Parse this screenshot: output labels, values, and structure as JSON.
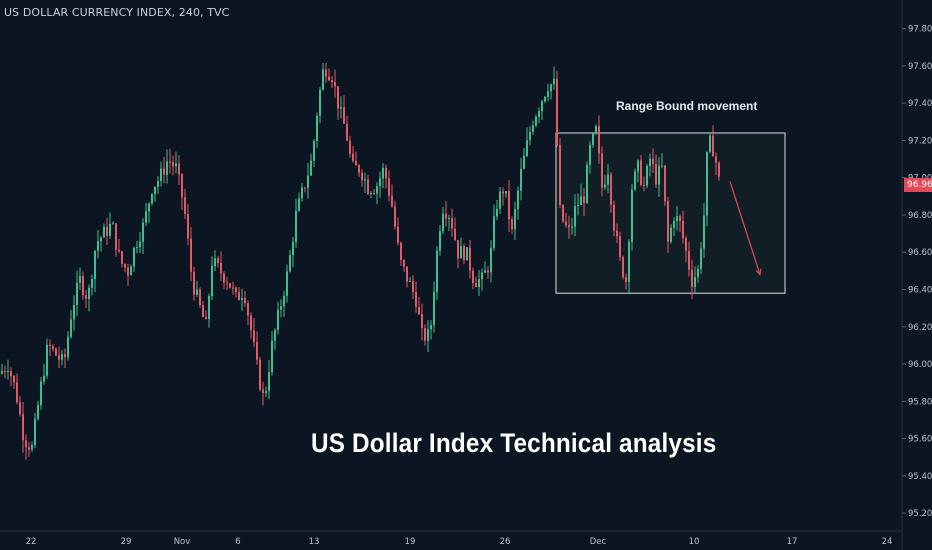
{
  "header": {
    "symbol_title": "US DOLLAR CURRENCY INDEX, 240, TVC"
  },
  "overlay": {
    "title": "US Dollar Index Technical analysis",
    "range_annotation": "Range Bound movement"
  },
  "current_price": {
    "label": "96.96",
    "value": 96.96,
    "color": "#e24a5b"
  },
  "colors": {
    "background": "#0c1622",
    "up": "#3fbf8f",
    "down": "#e25b68",
    "range_box_fill": "#15262a",
    "range_box_border": "#d9dde3",
    "arrow": "#e24a5b"
  },
  "chart_data": {
    "type": "candlestick",
    "title": "US DOLLAR CURRENCY INDEX, 240, TVC",
    "timeframe": "240",
    "x_tick_labels": [
      "22",
      "29",
      "Nov",
      "6",
      "13",
      "19",
      "26",
      "Dec",
      "10",
      "17",
      "24"
    ],
    "y_tick_values": [
      95.2,
      95.4,
      95.6,
      95.8,
      96.0,
      96.2,
      96.4,
      96.6,
      96.8,
      97.0,
      97.2,
      97.4,
      97.6,
      97.8
    ],
    "y_tick_labels": [
      "95.20",
      "95.40",
      "95.60",
      "95.80",
      "96.00",
      "96.20",
      "96.40",
      "96.60",
      "96.80",
      "97.00",
      "97.20",
      "97.40",
      "97.60",
      "97.80"
    ],
    "ylim": [
      95.12,
      97.9
    ],
    "grid": false,
    "path": [
      [
        0,
        95.95
      ],
      [
        8,
        96.0
      ],
      [
        16,
        95.85
      ],
      [
        24,
        95.6
      ],
      [
        32,
        95.55
      ],
      [
        40,
        95.85
      ],
      [
        48,
        96.1
      ],
      [
        56,
        96.05
      ],
      [
        64,
        96.0
      ],
      [
        72,
        96.3
      ],
      [
        80,
        96.45
      ],
      [
        88,
        96.35
      ],
      [
        96,
        96.65
      ],
      [
        104,
        96.7
      ],
      [
        112,
        96.75
      ],
      [
        120,
        96.55
      ],
      [
        128,
        96.5
      ],
      [
        136,
        96.65
      ],
      [
        144,
        96.75
      ],
      [
        152,
        96.95
      ],
      [
        160,
        97.0
      ],
      [
        168,
        97.1
      ],
      [
        176,
        97.05
      ],
      [
        184,
        96.85
      ],
      [
        192,
        96.45
      ],
      [
        200,
        96.3
      ],
      [
        206,
        96.2
      ],
      [
        212,
        96.55
      ],
      [
        220,
        96.5
      ],
      [
        228,
        96.45
      ],
      [
        236,
        96.35
      ],
      [
        244,
        96.4
      ],
      [
        252,
        96.15
      ],
      [
        258,
        95.95
      ],
      [
        264,
        95.8
      ],
      [
        272,
        96.1
      ],
      [
        280,
        96.3
      ],
      [
        288,
        96.5
      ],
      [
        296,
        96.8
      ],
      [
        304,
        96.95
      ],
      [
        312,
        97.1
      ],
      [
        318,
        97.4
      ],
      [
        324,
        97.6
      ],
      [
        332,
        97.55
      ],
      [
        340,
        97.35
      ],
      [
        346,
        97.25
      ],
      [
        352,
        97.05
      ],
      [
        360,
        97.05
      ],
      [
        368,
        96.95
      ],
      [
        376,
        96.95
      ],
      [
        384,
        97.05
      ],
      [
        392,
        96.85
      ],
      [
        400,
        96.55
      ],
      [
        408,
        96.45
      ],
      [
        416,
        96.35
      ],
      [
        422,
        96.15
      ],
      [
        430,
        96.15
      ],
      [
        436,
        96.55
      ],
      [
        442,
        96.85
      ],
      [
        450,
        96.8
      ],
      [
        458,
        96.6
      ],
      [
        466,
        96.6
      ],
      [
        474,
        96.45
      ],
      [
        482,
        96.45
      ],
      [
        490,
        96.55
      ],
      [
        496,
        96.85
      ],
      [
        504,
        96.95
      ],
      [
        512,
        96.7
      ],
      [
        520,
        97.0
      ],
      [
        526,
        97.15
      ],
      [
        532,
        97.3
      ],
      [
        540,
        97.4
      ],
      [
        548,
        97.5
      ],
      [
        556,
        97.5
      ],
      [
        558,
        96.85
      ],
      [
        564,
        96.75
      ],
      [
        570,
        96.7
      ],
      [
        576,
        96.85
      ],
      [
        584,
        96.9
      ],
      [
        590,
        97.15
      ],
      [
        596,
        97.25
      ],
      [
        602,
        96.95
      ],
      [
        608,
        97.05
      ],
      [
        614,
        96.75
      ],
      [
        620,
        96.55
      ],
      [
        626,
        96.45
      ],
      [
        632,
        96.95
      ],
      [
        638,
        97.05
      ],
      [
        644,
        96.95
      ],
      [
        650,
        97.1
      ],
      [
        656,
        97.0
      ],
      [
        662,
        97.05
      ],
      [
        668,
        96.65
      ],
      [
        674,
        96.8
      ],
      [
        680,
        96.75
      ],
      [
        686,
        96.6
      ],
      [
        692,
        96.45
      ],
      [
        698,
        96.5
      ],
      [
        704,
        96.8
      ],
      [
        708,
        97.2
      ],
      [
        714,
        97.15
      ],
      [
        720,
        96.95
      ]
    ],
    "range_box": {
      "start_x": 556,
      "end_x": 785,
      "y_high": 97.24,
      "y_low": 96.38
    },
    "projection_arrow": {
      "from_price": 96.98,
      "to_price": 96.48
    }
  }
}
